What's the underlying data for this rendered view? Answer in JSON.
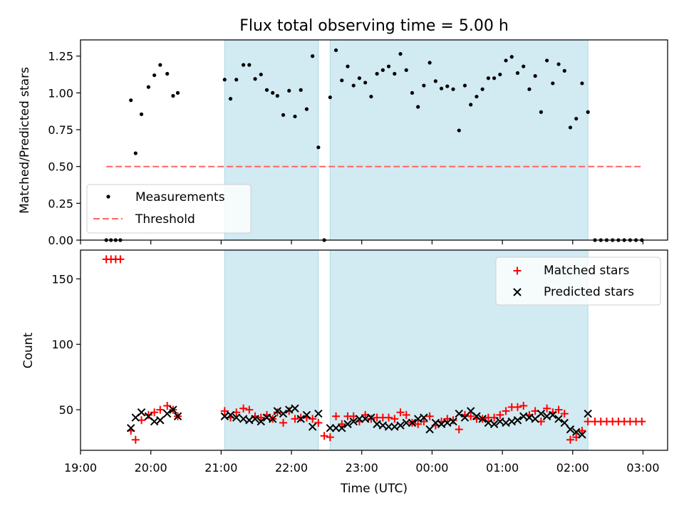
{
  "title": "Flux total observing time = 5.00 h",
  "chart_data": [
    {
      "type": "scatter",
      "ylabel": "Matched/Predicted stars",
      "ylim": [
        0,
        1.36
      ],
      "yticks": [
        "0.00",
        "0.25",
        "0.50",
        "0.75",
        "1.00",
        "1.25"
      ],
      "legend": {
        "position": "lower-left",
        "entries": [
          "Measurements",
          "Threshold"
        ]
      },
      "shaded_intervals": [
        [
          "21:03",
          "22:23"
        ],
        [
          "22:33",
          "02:13"
        ]
      ],
      "threshold": {
        "name": "Threshold",
        "color": "#ff6666",
        "x_start": "19:22",
        "x_end": "02:59",
        "y": 0.5
      },
      "series": [
        {
          "name": "Measurements",
          "color": "#000000",
          "points": [
            [
              "19:22",
              0
            ],
            [
              "19:26",
              0
            ],
            [
              "19:30",
              0
            ],
            [
              "19:34",
              0
            ],
            [
              "19:43",
              0.95
            ],
            [
              "19:47",
              0.59
            ],
            [
              "19:52",
              0.855
            ],
            [
              "19:58",
              1.04
            ],
            [
              "20:03",
              1.12
            ],
            [
              "20:08",
              1.19
            ],
            [
              "20:14",
              1.13
            ],
            [
              "20:19",
              0.98
            ],
            [
              "20:23",
              1.0
            ],
            [
              "21:03",
              1.09
            ],
            [
              "21:08",
              0.96
            ],
            [
              "21:13",
              1.09
            ],
            [
              "21:19",
              1.19
            ],
            [
              "21:24",
              1.19
            ],
            [
              "21:29",
              1.095
            ],
            [
              "21:34",
              1.125
            ],
            [
              "21:39",
              1.02
            ],
            [
              "21:44",
              1.0
            ],
            [
              "21:48",
              0.98
            ],
            [
              "21:53",
              0.85
            ],
            [
              "21:58",
              1.015
            ],
            [
              "22:03",
              0.84
            ],
            [
              "22:08",
              1.02
            ],
            [
              "22:13",
              0.89
            ],
            [
              "22:18",
              1.25
            ],
            [
              "22:23",
              0.63
            ],
            [
              "22:28",
              0
            ],
            [
              "22:33",
              0.97
            ],
            [
              "22:38",
              1.29
            ],
            [
              "22:43",
              1.085
            ],
            [
              "22:48",
              1.18
            ],
            [
              "22:53",
              1.05
            ],
            [
              "22:58",
              1.1
            ],
            [
              "23:03",
              1.07
            ],
            [
              "23:08",
              0.975
            ],
            [
              "23:13",
              1.13
            ],
            [
              "23:18",
              1.155
            ],
            [
              "23:23",
              1.18
            ],
            [
              "23:28",
              1.13
            ],
            [
              "23:33",
              1.265
            ],
            [
              "23:38",
              1.155
            ],
            [
              "23:43",
              1.0
            ],
            [
              "23:48",
              0.905
            ],
            [
              "23:53",
              1.05
            ],
            [
              "23:58",
              1.205
            ],
            [
              "00:03",
              1.08
            ],
            [
              "00:08",
              1.03
            ],
            [
              "00:13",
              1.045
            ],
            [
              "00:18",
              1.025
            ],
            [
              "00:23",
              0.745
            ],
            [
              "00:28",
              1.05
            ],
            [
              "00:33",
              0.92
            ],
            [
              "00:38",
              0.975
            ],
            [
              "00:43",
              1.025
            ],
            [
              "00:48",
              1.1
            ],
            [
              "00:53",
              1.1
            ],
            [
              "00:58",
              1.125
            ],
            [
              "01:03",
              1.22
            ],
            [
              "01:08",
              1.245
            ],
            [
              "01:13",
              1.135
            ],
            [
              "01:18",
              1.18
            ],
            [
              "01:23",
              1.025
            ],
            [
              "01:28",
              1.115
            ],
            [
              "01:33",
              0.87
            ],
            [
              "01:38",
              1.22
            ],
            [
              "01:43",
              1.065
            ],
            [
              "01:48",
              1.195
            ],
            [
              "01:53",
              1.15
            ],
            [
              "01:58",
              0.765
            ],
            [
              "02:03",
              0.825
            ],
            [
              "02:08",
              1.065
            ],
            [
              "02:13",
              0.87
            ],
            [
              "02:19",
              0
            ],
            [
              "02:24",
              0
            ],
            [
              "02:29",
              0
            ],
            [
              "02:34",
              0
            ],
            [
              "02:39",
              0
            ],
            [
              "02:44",
              0
            ],
            [
              "02:49",
              0
            ],
            [
              "02:54",
              0
            ],
            [
              "02:59",
              0
            ]
          ]
        }
      ]
    },
    {
      "type": "scatter",
      "xlabel": "Time (UTC)",
      "ylabel": "Count",
      "ylim": [
        19,
        172
      ],
      "yticks": [
        "50",
        "100",
        "150"
      ],
      "xticks": [
        "19:00",
        "20:00",
        "21:00",
        "22:00",
        "23:00",
        "00:00",
        "01:00",
        "02:00",
        "03:00"
      ],
      "xlim": [
        "19:00",
        "03:21"
      ],
      "legend": {
        "position": "upper-right",
        "entries": [
          "Matched stars",
          "Predicted stars"
        ]
      },
      "shaded_intervals": [
        [
          "21:03",
          "22:23"
        ],
        [
          "22:33",
          "02:13"
        ]
      ],
      "series": [
        {
          "name": "Matched stars",
          "color": "#ff0000",
          "marker": "plus",
          "points": [
            [
              "19:22",
              165
            ],
            [
              "19:26",
              165
            ],
            [
              "19:30",
              165
            ],
            [
              "19:34",
              165
            ],
            [
              "19:43",
              34
            ],
            [
              "19:47",
              27
            ],
            [
              "19:52",
              42
            ],
            [
              "19:58",
              46
            ],
            [
              "20:03",
              48
            ],
            [
              "20:08",
              50
            ],
            [
              "20:14",
              53
            ],
            [
              "20:19",
              50
            ],
            [
              "20:23",
              45
            ],
            [
              "21:03",
              49
            ],
            [
              "21:08",
              44
            ],
            [
              "21:13",
              48
            ],
            [
              "21:19",
              51
            ],
            [
              "21:24",
              50
            ],
            [
              "21:29",
              45
            ],
            [
              "21:34",
              44
            ],
            [
              "21:39",
              46
            ],
            [
              "21:44",
              43
            ],
            [
              "21:48",
              48
            ],
            [
              "21:53",
              40
            ],
            [
              "21:58",
              49
            ],
            [
              "22:03",
              43
            ],
            [
              "22:08",
              44
            ],
            [
              "22:13",
              44
            ],
            [
              "22:18",
              43
            ],
            [
              "22:23",
              40
            ],
            [
              "22:28",
              30
            ],
            [
              "22:33",
              29
            ],
            [
              "22:38",
              45
            ],
            [
              "22:43",
              39
            ],
            [
              "22:48",
              45
            ],
            [
              "22:53",
              45
            ],
            [
              "22:58",
              41
            ],
            [
              "23:03",
              46
            ],
            [
              "23:08",
              43
            ],
            [
              "23:13",
              44
            ],
            [
              "23:18",
              44
            ],
            [
              "23:23",
              44
            ],
            [
              "23:28",
              43
            ],
            [
              "23:33",
              48
            ],
            [
              "23:38",
              46
            ],
            [
              "23:43",
              40
            ],
            [
              "23:48",
              39
            ],
            [
              "23:53",
              41
            ],
            [
              "23:58",
              45
            ],
            [
              "00:03",
              38
            ],
            [
              "00:08",
              41
            ],
            [
              "00:13",
              43
            ],
            [
              "00:18",
              42
            ],
            [
              "00:23",
              35
            ],
            [
              "00:28",
              46
            ],
            [
              "00:33",
              45
            ],
            [
              "00:38",
              43
            ],
            [
              "00:43",
              43
            ],
            [
              "00:48",
              44
            ],
            [
              "00:53",
              44
            ],
            [
              "00:58",
              46
            ],
            [
              "01:03",
              49
            ],
            [
              "01:08",
              52
            ],
            [
              "01:13",
              52
            ],
            [
              "01:18",
              53
            ],
            [
              "01:23",
              46
            ],
            [
              "01:28",
              49
            ],
            [
              "01:33",
              41
            ],
            [
              "01:38",
              51
            ],
            [
              "01:43",
              48
            ],
            [
              "01:48",
              50
            ],
            [
              "01:53",
              47
            ],
            [
              "01:58",
              27
            ],
            [
              "02:03",
              29
            ],
            [
              "02:08",
              34
            ],
            [
              "02:13",
              41
            ],
            [
              "02:19",
              41
            ],
            [
              "02:24",
              41
            ],
            [
              "02:29",
              41
            ],
            [
              "02:34",
              41
            ],
            [
              "02:39",
              41
            ],
            [
              "02:44",
              41
            ],
            [
              "02:49",
              41
            ],
            [
              "02:54",
              41
            ],
            [
              "02:59",
              41
            ]
          ]
        },
        {
          "name": "Predicted stars",
          "color": "#000000",
          "marker": "x",
          "points": [
            [
              "19:43",
              36
            ],
            [
              "19:47",
              44
            ],
            [
              "19:52",
              48
            ],
            [
              "19:58",
              45
            ],
            [
              "20:03",
              41
            ],
            [
              "20:08",
              42
            ],
            [
              "20:14",
              47
            ],
            [
              "20:19",
              50
            ],
            [
              "20:23",
              45
            ],
            [
              "21:03",
              45
            ],
            [
              "21:08",
              46
            ],
            [
              "21:13",
              44
            ],
            [
              "21:19",
              43
            ],
            [
              "21:24",
              42
            ],
            [
              "21:29",
              43
            ],
            [
              "21:34",
              41
            ],
            [
              "21:39",
              44
            ],
            [
              "21:44",
              43
            ],
            [
              "21:48",
              49
            ],
            [
              "21:53",
              47
            ],
            [
              "21:58",
              50
            ],
            [
              "22:03",
              51
            ],
            [
              "22:08",
              43
            ],
            [
              "22:13",
              46
            ],
            [
              "22:18",
              37
            ],
            [
              "22:23",
              47
            ],
            [
              "22:33",
              36
            ],
            [
              "22:38",
              36
            ],
            [
              "22:43",
              36
            ],
            [
              "22:48",
              39
            ],
            [
              "22:53",
              41
            ],
            [
              "22:58",
              43
            ],
            [
              "23:03",
              43
            ],
            [
              "23:08",
              44
            ],
            [
              "23:13",
              39
            ],
            [
              "23:18",
              38
            ],
            [
              "23:23",
              37
            ],
            [
              "23:28",
              37
            ],
            [
              "23:33",
              38
            ],
            [
              "23:38",
              40
            ],
            [
              "23:43",
              40
            ],
            [
              "23:48",
              43
            ],
            [
              "23:53",
              44
            ],
            [
              "23:58",
              35
            ],
            [
              "00:03",
              40
            ],
            [
              "00:08",
              39
            ],
            [
              "00:13",
              40
            ],
            [
              "00:18",
              41
            ],
            [
              "00:23",
              47
            ],
            [
              "00:28",
              44
            ],
            [
              "00:33",
              49
            ],
            [
              "00:38",
              45
            ],
            [
              "00:43",
              43
            ],
            [
              "00:48",
              40
            ],
            [
              "00:53",
              39
            ],
            [
              "00:58",
              41
            ],
            [
              "01:03",
              40
            ],
            [
              "01:08",
              41
            ],
            [
              "01:13",
              42
            ],
            [
              "01:18",
              45
            ],
            [
              "01:23",
              44
            ],
            [
              "01:28",
              43
            ],
            [
              "01:33",
              47
            ],
            [
              "01:38",
              45
            ],
            [
              "01:43",
              46
            ],
            [
              "01:48",
              43
            ],
            [
              "01:53",
              40
            ],
            [
              "01:58",
              35
            ],
            [
              "02:03",
              33
            ],
            [
              "02:08",
              31
            ],
            [
              "02:13",
              47
            ]
          ]
        }
      ]
    }
  ]
}
